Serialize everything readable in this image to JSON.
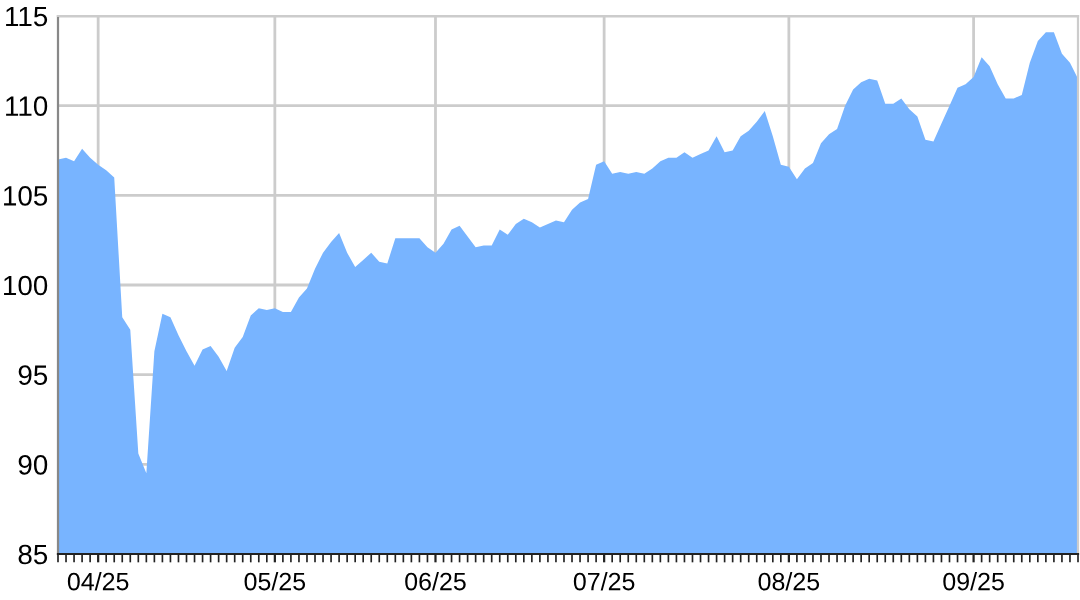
{
  "chart_data": {
    "type": "area",
    "color": "#78b4ff",
    "categories": [
      null,
      null,
      null,
      null,
      null,
      "04/25",
      null,
      null,
      null,
      null,
      null,
      null,
      null,
      null,
      null,
      null,
      null,
      null,
      null,
      null,
      null,
      null,
      null,
      null,
      null,
      null,
      null,
      "05/25",
      null,
      null,
      null,
      null,
      null,
      null,
      null,
      null,
      null,
      null,
      null,
      null,
      null,
      null,
      null,
      null,
      null,
      null,
      null,
      "06/25",
      null,
      null,
      null,
      null,
      null,
      null,
      null,
      null,
      null,
      null,
      null,
      null,
      null,
      null,
      null,
      null,
      null,
      null,
      null,
      null,
      "07/25",
      null,
      null,
      null,
      null,
      null,
      null,
      null,
      null,
      null,
      null,
      null,
      null,
      null,
      null,
      null,
      null,
      null,
      null,
      null,
      null,
      null,
      null,
      "08/25",
      null,
      null,
      null,
      null,
      null,
      null,
      null,
      null,
      null,
      null,
      null,
      null,
      null,
      null,
      null,
      null,
      null,
      null,
      null,
      null,
      null,
      null,
      "09/25",
      null,
      null,
      null,
      null,
      null,
      null,
      null,
      null,
      null,
      null,
      null,
      null,
      null
    ],
    "values": [
      107.0,
      107.1,
      106.9,
      107.6,
      107.1,
      106.7,
      106.4,
      106.0,
      98.2,
      97.5,
      90.6,
      89.5,
      96.3,
      98.4,
      98.2,
      97.2,
      96.3,
      95.5,
      96.4,
      96.6,
      96.0,
      95.2,
      96.5,
      97.1,
      98.3,
      98.7,
      98.6,
      98.7,
      98.5,
      98.5,
      99.3,
      99.8,
      100.9,
      101.8,
      102.4,
      102.9,
      101.8,
      101.0,
      101.4,
      101.8,
      101.3,
      101.2,
      102.6,
      102.6,
      102.6,
      102.6,
      102.1,
      101.8,
      102.3,
      103.1,
      103.3,
      102.7,
      102.1,
      102.2,
      102.2,
      103.1,
      102.8,
      103.4,
      103.7,
      103.5,
      103.2,
      103.4,
      103.6,
      103.5,
      104.2,
      104.6,
      104.8,
      106.7,
      106.9,
      106.2,
      106.3,
      106.2,
      106.3,
      106.2,
      106.5,
      106.9,
      107.1,
      107.1,
      107.4,
      107.1,
      107.3,
      107.5,
      108.3,
      107.4,
      107.5,
      108.3,
      108.6,
      109.1,
      109.7,
      108.3,
      106.7,
      106.6,
      105.9,
      106.5,
      106.8,
      107.9,
      108.4,
      108.7,
      110.0,
      110.9,
      111.3,
      111.5,
      111.4,
      110.1,
      110.1,
      110.4,
      109.8,
      109.4,
      108.1,
      108.0,
      109.0,
      110.0,
      111.0,
      111.2,
      111.6,
      112.7,
      112.2,
      111.2,
      110.4,
      110.4,
      110.6,
      112.4,
      113.6,
      114.1,
      114.1,
      112.9,
      112.4,
      111.5
    ],
    "ylim": [
      85,
      115
    ],
    "yticks": [
      85,
      90,
      95,
      100,
      105,
      110,
      115
    ],
    "grid": true
  }
}
